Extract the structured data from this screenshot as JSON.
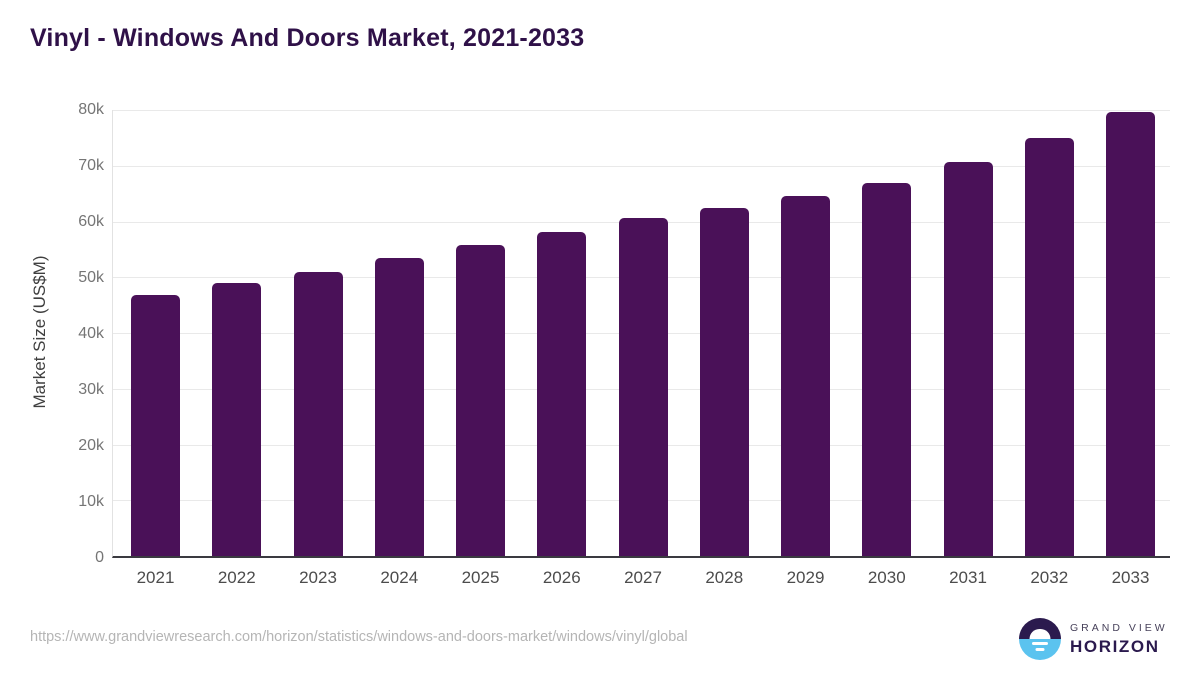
{
  "title": "Vinyl - Windows And Doors Market, 2021-2033",
  "chart_data": {
    "type": "bar",
    "title": "Vinyl - Windows And Doors Market, 2021-2033",
    "categories": [
      "2021",
      "2022",
      "2023",
      "2024",
      "2025",
      "2026",
      "2027",
      "2028",
      "2029",
      "2030",
      "2031",
      "2032",
      "2033"
    ],
    "values": [
      46900,
      48900,
      51000,
      53400,
      55700,
      58200,
      60600,
      62400,
      64600,
      66900,
      70600,
      75000,
      79700
    ],
    "xlabel": "",
    "ylabel": "Market Size (US$M)",
    "ylim": [
      0,
      80000
    ],
    "yticks": [
      {
        "label": "0",
        "value": 0
      },
      {
        "label": "10k",
        "value": 10000
      },
      {
        "label": "20k",
        "value": 20000
      },
      {
        "label": "30k",
        "value": 30000
      },
      {
        "label": "40k",
        "value": 40000
      },
      {
        "label": "50k",
        "value": 50000
      },
      {
        "label": "60k",
        "value": 60000
      },
      {
        "label": "70k",
        "value": 70000
      },
      {
        "label": "80k",
        "value": 80000
      }
    ],
    "grid": "horizontal",
    "legend": "none",
    "bar_color": "#4a1158"
  },
  "colors": {
    "title": "#2f1148",
    "bar": "#4a1158",
    "gridline": "#e9e9e9",
    "axis_baseline": "#3a3a40",
    "tick_text": "#757575",
    "x_label_text": "#4c4c4c",
    "source_text": "#b5b5b5",
    "logo_purple": "#2b1a4e",
    "logo_blue": "#5bc3ef"
  },
  "footer": {
    "source_url": "https://www.grandviewresearch.com/horizon/statistics/windows-and-doors-market/windows/vinyl/global",
    "logo": {
      "top_text": "GRAND VIEW",
      "bottom_text": "HORIZON"
    }
  }
}
